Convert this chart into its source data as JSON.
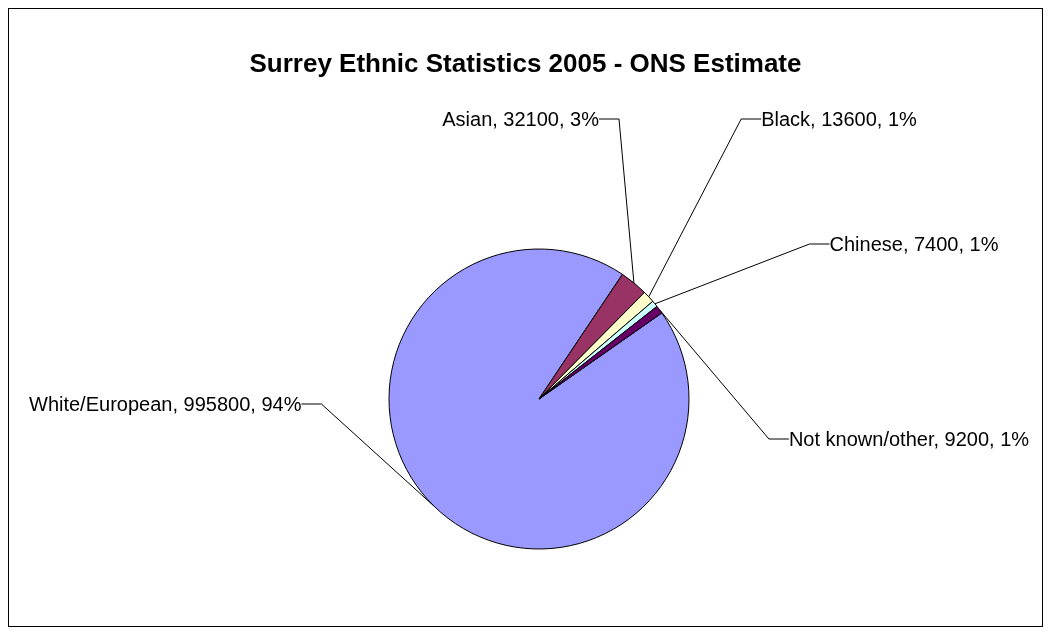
{
  "chart_data": {
    "type": "pie",
    "title": "Surrey Ethnic Statistics 2005 - ONS Estimate",
    "categories": [
      "White/European",
      "Asian",
      "Black",
      "Chinese",
      "Not known/other"
    ],
    "values": [
      995800,
      32100,
      13600,
      7400,
      9200
    ],
    "colors": [
      "#9999ff",
      "#993366",
      "#ffffcc",
      "#ccffff",
      "#660066"
    ],
    "value_labels": [
      "995800, 94%",
      "32100, 3%",
      "13600, 1%",
      "7400, 1%",
      "9200, 1%"
    ],
    "legend": false
  }
}
